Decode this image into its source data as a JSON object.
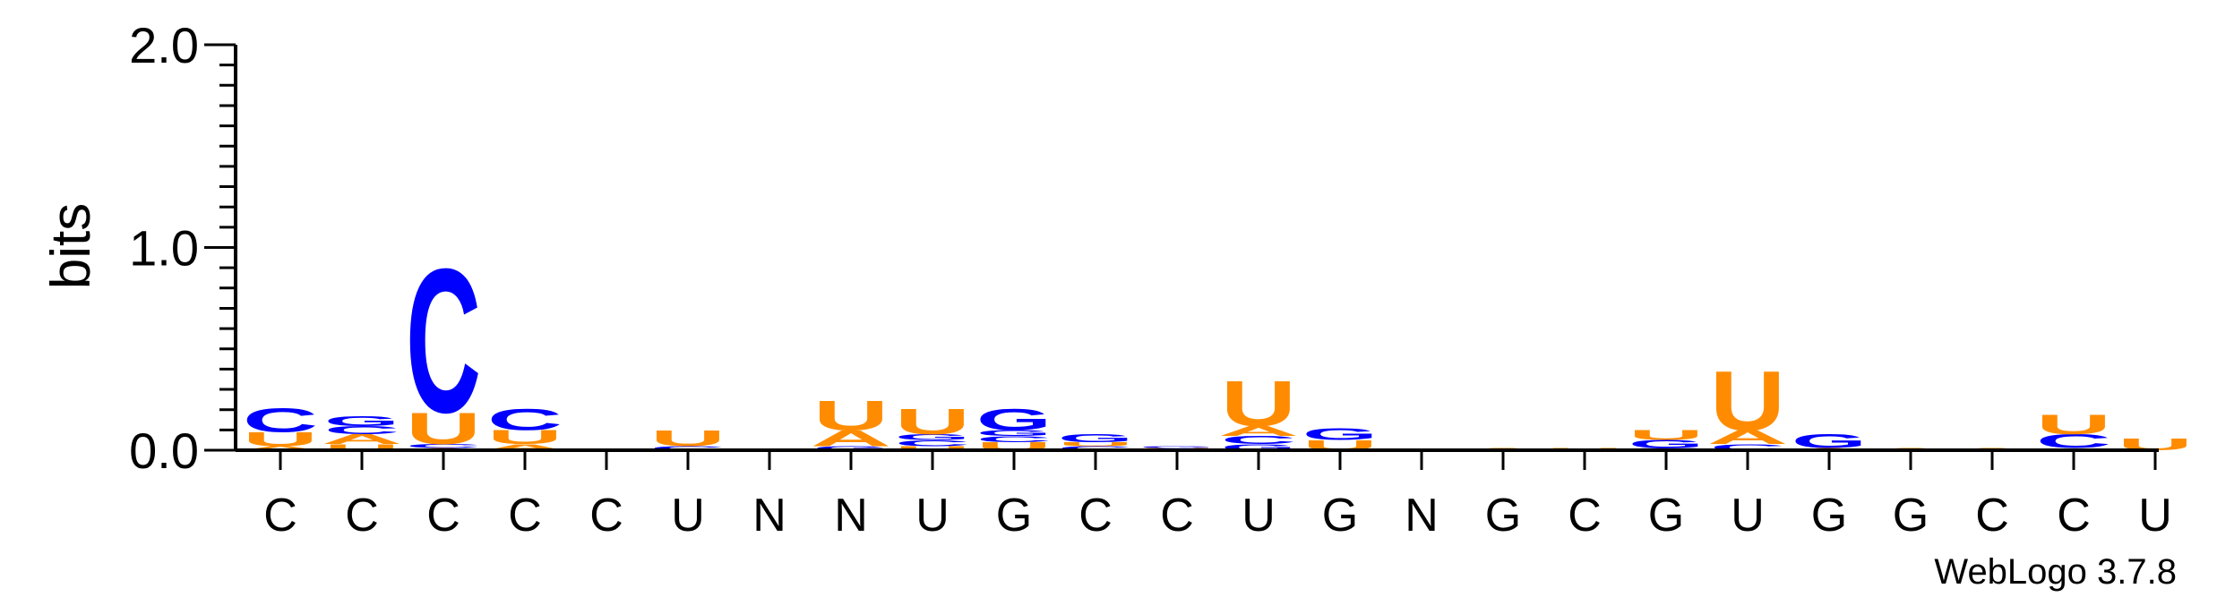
{
  "colors": {
    "A": "#FF8C00",
    "U": "#FF8C00",
    "C": "#0000FF",
    "G": "#0000FF",
    "axis": "#000000"
  },
  "chart_data": {
    "type": "sequence-logo",
    "ylabel": "bits",
    "ylim": [
      0,
      2.0
    ],
    "yticks": [
      "0.0",
      "1.0",
      "2.0"
    ],
    "consensus": [
      "C",
      "C",
      "C",
      "C",
      "C",
      "U",
      "N",
      "N",
      "U",
      "G",
      "C",
      "C",
      "U",
      "G",
      "N",
      "G",
      "C",
      "G",
      "U",
      "G",
      "G",
      "C",
      "C",
      "U"
    ],
    "stacks": [
      [
        [
          "A",
          0.02
        ],
        [
          "U",
          0.07
        ],
        [
          "C",
          0.12
        ]
      ],
      [
        [
          "U",
          0.03
        ],
        [
          "A",
          0.05
        ],
        [
          "C",
          0.04
        ],
        [
          "G",
          0.05
        ]
      ],
      [
        [
          "A",
          0.01
        ],
        [
          "C",
          0.02
        ],
        [
          "U",
          0.16
        ],
        [
          "C",
          0.73
        ]
      ],
      [
        [
          "A",
          0.03
        ],
        [
          "U",
          0.07
        ],
        [
          "C",
          0.11
        ]
      ],
      [],
      [
        [
          "C",
          0.02
        ],
        [
          "U",
          0.08
        ]
      ],
      [],
      [
        [
          "G",
          0.02
        ],
        [
          "A",
          0.08
        ],
        [
          "U",
          0.15
        ]
      ],
      [
        [
          "U",
          0.02
        ],
        [
          "C",
          0.03
        ],
        [
          "G",
          0.03
        ],
        [
          "U",
          0.13
        ]
      ],
      [
        [
          "U",
          0.04
        ],
        [
          "C",
          0.03
        ],
        [
          "G",
          0.03
        ],
        [
          "G",
          0.11
        ]
      ],
      [
        [
          "C",
          0.02
        ],
        [
          "U",
          0.02
        ],
        [
          "G",
          0.04
        ]
      ],
      [
        [
          "U",
          0.01
        ],
        [
          "G",
          0.01
        ]
      ],
      [
        [
          "G",
          0.03
        ],
        [
          "C",
          0.04
        ],
        [
          "A",
          0.05
        ],
        [
          "U",
          0.23
        ]
      ],
      [
        [
          "U",
          0.05
        ],
        [
          "G",
          0.06
        ]
      ],
      [],
      [
        [
          "A",
          0.01
        ]
      ],
      [
        [
          "U",
          0.01
        ]
      ],
      [
        [
          "C",
          0.01
        ],
        [
          "G",
          0.04
        ],
        [
          "U",
          0.05
        ]
      ],
      [
        [
          "C",
          0.03
        ],
        [
          "A",
          0.07
        ],
        [
          "U",
          0.3
        ]
      ],
      [
        [
          "A",
          0.01
        ],
        [
          "G",
          0.07
        ]
      ],
      [
        [
          "A",
          0.01
        ]
      ],
      [
        [
          "A",
          0.01
        ]
      ],
      [
        [
          "G",
          0.01
        ],
        [
          "C",
          0.07
        ],
        [
          "U",
          0.1
        ]
      ],
      [
        [
          "U",
          0.06
        ]
      ]
    ]
  },
  "credit": "WebLogo 3.7.8"
}
